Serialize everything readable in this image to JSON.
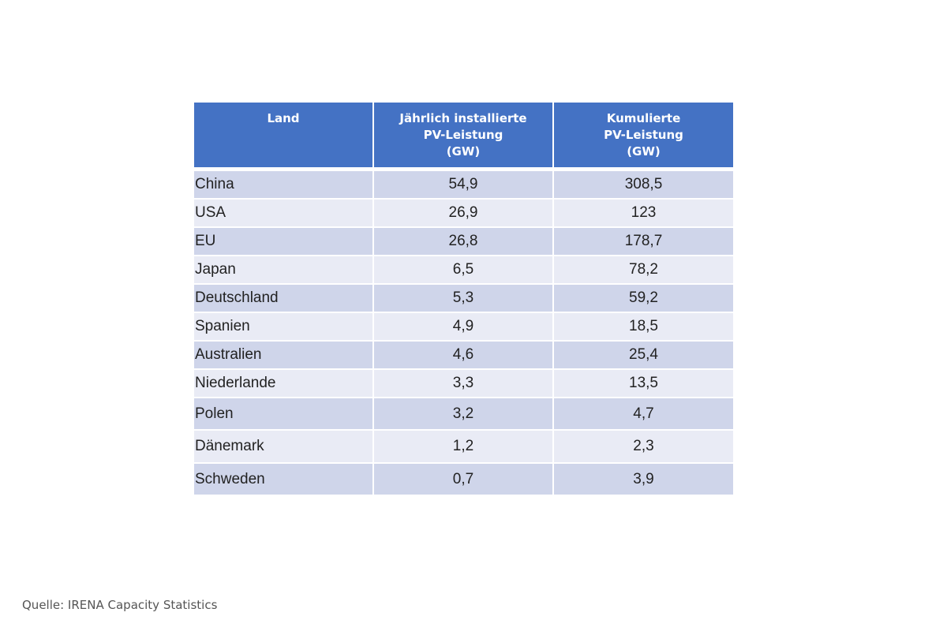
{
  "chart_data": {
    "type": "table",
    "columns": [
      [
        "Land"
      ],
      [
        "Jährlich installierte",
        "PV-Leistung",
        "(GW)"
      ],
      [
        "Kumulierte",
        "PV-Leistung",
        "(GW)"
      ]
    ],
    "rows": [
      {
        "land": "China",
        "annual": "54,9",
        "cumulative": "308,5"
      },
      {
        "land": "USA",
        "annual": "26,9",
        "cumulative": "123"
      },
      {
        "land": "EU",
        "annual": "26,8",
        "cumulative": "178,7"
      },
      {
        "land": "Japan",
        "annual": "6,5",
        "cumulative": "78,2"
      },
      {
        "land": "Deutschland",
        "annual": "5,3",
        "cumulative": "59,2"
      },
      {
        "land": "Spanien",
        "annual": "4,9",
        "cumulative": "18,5"
      },
      {
        "land": "Australien",
        "annual": "4,6",
        "cumulative": "25,4"
      },
      {
        "land": "Niederlande",
        "annual": "3,3",
        "cumulative": "13,5"
      },
      {
        "land": "Polen",
        "annual": "3,2",
        "cumulative": "4,7"
      },
      {
        "land": "Dänemark",
        "annual": "1,2",
        "cumulative": "2,3"
      },
      {
        "land": "Schweden",
        "annual": "0,7",
        "cumulative": "3,9"
      }
    ],
    "colors": {
      "header": "#4472c4",
      "row_dark": "#cfd5ea",
      "row_light": "#e9ebf5"
    }
  },
  "source": "Quelle: IRENA Capacity Statistics"
}
